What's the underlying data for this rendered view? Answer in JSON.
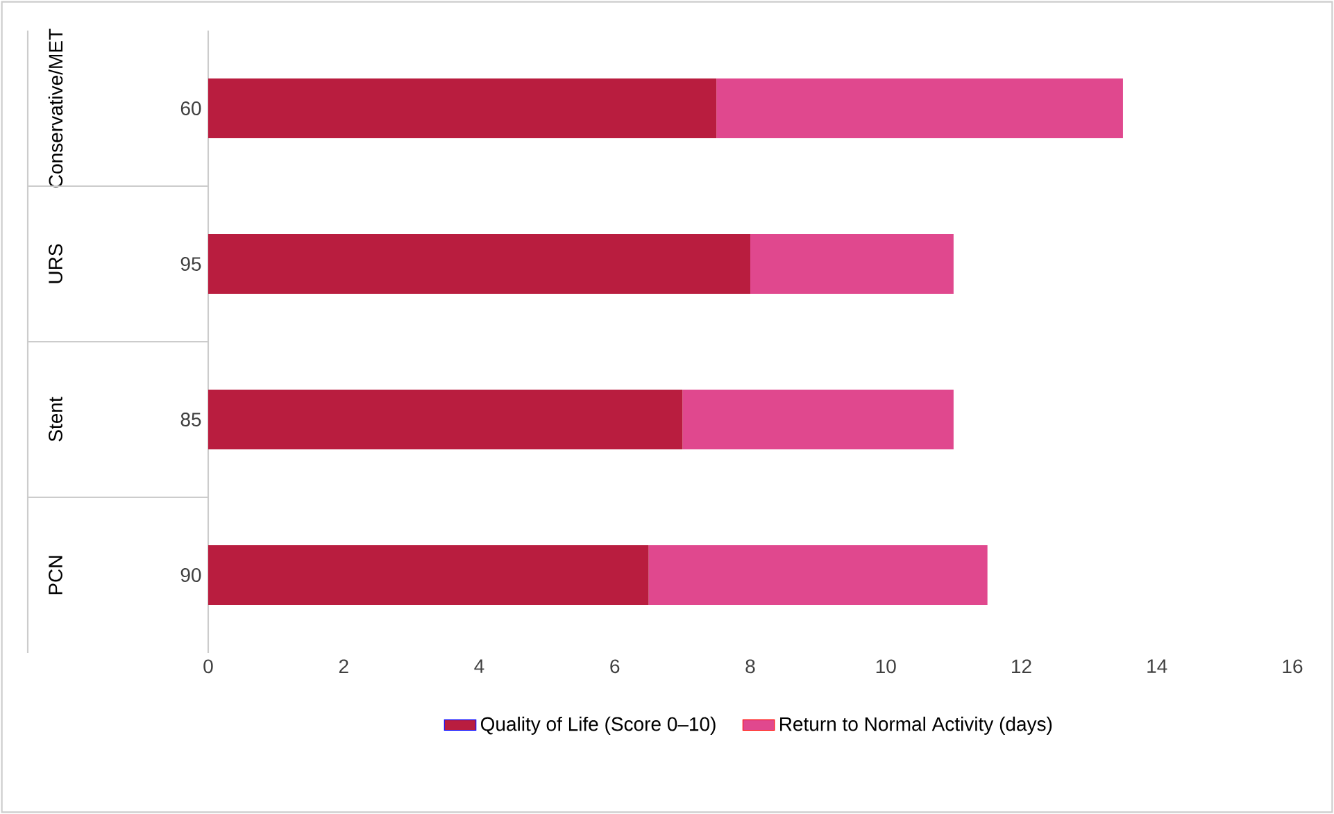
{
  "chart_data": {
    "type": "bar",
    "orientation": "horizontal",
    "stacked": true,
    "categories": [
      "60",
      "95",
      "85",
      "90"
    ],
    "series": [
      {
        "name": "Quality of Life (Score 0–10)",
        "color": "#b91d3f",
        "values": [
          7.5,
          8,
          7,
          6.5
        ]
      },
      {
        "name": "Return to Normal Activity (days)",
        "color": "#e0488e",
        "values": [
          6,
          3,
          4,
          5
        ]
      }
    ],
    "annotations": [
      "Conservative/MET",
      "URS",
      "Stent",
      "PCN"
    ],
    "xlim": [
      0,
      16
    ],
    "xticks": [
      0,
      2,
      4,
      6,
      8,
      10,
      12,
      14,
      16
    ],
    "grid": false,
    "legend": "bottom"
  }
}
